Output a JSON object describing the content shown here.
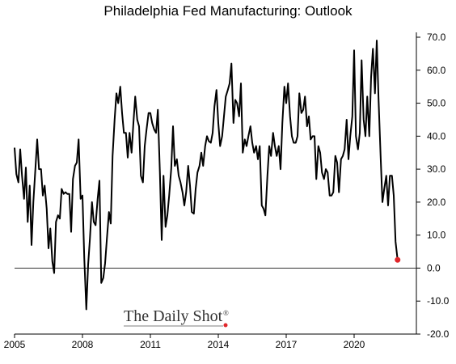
{
  "chart_data": {
    "type": "line",
    "title": "Philadelphia Fed Manufacturing: Outlook",
    "xlabel": "",
    "ylabel": "",
    "xlim": [
      2005.0,
      2022.75
    ],
    "ylim": [
      -20,
      70
    ],
    "y_ticks": [
      -20,
      -10,
      0,
      10,
      20,
      30,
      40,
      50,
      60,
      70
    ],
    "y_tick_labels": [
      "-20.0",
      "-10.0",
      "0.0",
      "10.0",
      "20.0",
      "30.0",
      "40.0",
      "50.0",
      "60.0",
      "70.0"
    ],
    "x_ticks": [
      2005,
      2008,
      2011,
      2014,
      2017,
      2020
    ],
    "x_tick_labels": [
      "2005",
      "2008",
      "2011",
      "2014",
      "2017",
      "2020"
    ],
    "zero_line": true,
    "grid": false,
    "last_point_marker": true,
    "series": [
      {
        "color": "#000000",
        "points": [
          [
            2005.0,
            36.5
          ],
          [
            2005.08,
            28.5
          ],
          [
            2005.17,
            26.0
          ],
          [
            2005.25,
            36.0
          ],
          [
            2005.33,
            28.0
          ],
          [
            2005.42,
            21.0
          ],
          [
            2005.5,
            30.5
          ],
          [
            2005.58,
            14.0
          ],
          [
            2005.67,
            25.0
          ],
          [
            2005.75,
            7.0
          ],
          [
            2005.83,
            20.0
          ],
          [
            2005.92,
            30.0
          ],
          [
            2006.0,
            39.0
          ],
          [
            2006.08,
            30.0
          ],
          [
            2006.17,
            30.0
          ],
          [
            2006.25,
            22.0
          ],
          [
            2006.33,
            25.0
          ],
          [
            2006.42,
            18.0
          ],
          [
            2006.5,
            6.0
          ],
          [
            2006.58,
            12.0
          ],
          [
            2006.67,
            2.0
          ],
          [
            2006.75,
            -1.5
          ],
          [
            2006.83,
            14.0
          ],
          [
            2006.92,
            16.0
          ],
          [
            2007.0,
            15.0
          ],
          [
            2007.08,
            24.0
          ],
          [
            2007.17,
            22.5
          ],
          [
            2007.25,
            23.0
          ],
          [
            2007.33,
            22.5
          ],
          [
            2007.42,
            22.5
          ],
          [
            2007.5,
            11.0
          ],
          [
            2007.58,
            27.0
          ],
          [
            2007.67,
            31.0
          ],
          [
            2007.75,
            32.0
          ],
          [
            2007.83,
            39.0
          ],
          [
            2007.92,
            21.0
          ],
          [
            2008.0,
            22.0
          ],
          [
            2008.08,
            3.0
          ],
          [
            2008.17,
            -12.5
          ],
          [
            2008.25,
            1.0
          ],
          [
            2008.33,
            9.0
          ],
          [
            2008.42,
            20.0
          ],
          [
            2008.5,
            14.0
          ],
          [
            2008.58,
            13.0
          ],
          [
            2008.67,
            21.0
          ],
          [
            2008.75,
            26.5
          ],
          [
            2008.83,
            -4.5
          ],
          [
            2008.92,
            -3.0
          ],
          [
            2009.0,
            1.5
          ],
          [
            2009.08,
            9.0
          ],
          [
            2009.17,
            17.0
          ],
          [
            2009.25,
            13.5
          ],
          [
            2009.33,
            34.0
          ],
          [
            2009.42,
            45.0
          ],
          [
            2009.5,
            53.0
          ],
          [
            2009.58,
            50.0
          ],
          [
            2009.67,
            55.0
          ],
          [
            2009.75,
            47.0
          ],
          [
            2009.83,
            41.0
          ],
          [
            2009.92,
            41.0
          ],
          [
            2010.0,
            33.5
          ],
          [
            2010.08,
            41.0
          ],
          [
            2010.17,
            35.0
          ],
          [
            2010.25,
            44.0
          ],
          [
            2010.33,
            52.0
          ],
          [
            2010.42,
            45.0
          ],
          [
            2010.5,
            43.0
          ],
          [
            2010.58,
            28.0
          ],
          [
            2010.67,
            26.0
          ],
          [
            2010.75,
            37.0
          ],
          [
            2010.83,
            42.0
          ],
          [
            2010.92,
            47.0
          ],
          [
            2011.0,
            47.0
          ],
          [
            2011.08,
            44.0
          ],
          [
            2011.17,
            42.0
          ],
          [
            2011.25,
            41.0
          ],
          [
            2011.33,
            48.0
          ],
          [
            2011.42,
            29.0
          ],
          [
            2011.5,
            8.5
          ],
          [
            2011.58,
            28.0
          ],
          [
            2011.67,
            12.5
          ],
          [
            2011.75,
            16.0
          ],
          [
            2011.83,
            22.0
          ],
          [
            2011.92,
            30.0
          ],
          [
            2012.0,
            43.0
          ],
          [
            2012.08,
            31.0
          ],
          [
            2012.17,
            33.0
          ],
          [
            2012.25,
            28.0
          ],
          [
            2012.33,
            26.0
          ],
          [
            2012.42,
            23.0
          ],
          [
            2012.5,
            19.0
          ],
          [
            2012.58,
            23.0
          ],
          [
            2012.67,
            31.0
          ],
          [
            2012.75,
            25.0
          ],
          [
            2012.83,
            17.0
          ],
          [
            2012.92,
            16.5
          ],
          [
            2013.0,
            24.0
          ],
          [
            2013.08,
            29.0
          ],
          [
            2013.17,
            31.0
          ],
          [
            2013.25,
            35.0
          ],
          [
            2013.33,
            31.0
          ],
          [
            2013.42,
            37.0
          ],
          [
            2013.5,
            40.0
          ],
          [
            2013.58,
            38.5
          ],
          [
            2013.67,
            38.0
          ],
          [
            2013.75,
            41.0
          ],
          [
            2013.83,
            49.0
          ],
          [
            2013.92,
            54.0
          ],
          [
            2014.0,
            44.0
          ],
          [
            2014.08,
            37.0
          ],
          [
            2014.17,
            40.0
          ],
          [
            2014.25,
            46.0
          ],
          [
            2014.33,
            52.0
          ],
          [
            2014.42,
            54.0
          ],
          [
            2014.5,
            56.0
          ],
          [
            2014.58,
            62.0
          ],
          [
            2014.67,
            44.0
          ],
          [
            2014.75,
            51.0
          ],
          [
            2014.83,
            50.0
          ],
          [
            2014.92,
            46.0
          ],
          [
            2015.0,
            56.0
          ],
          [
            2015.08,
            35.0
          ],
          [
            2015.17,
            39.0
          ],
          [
            2015.25,
            37.0
          ],
          [
            2015.33,
            40.0
          ],
          [
            2015.42,
            43.0
          ],
          [
            2015.5,
            38.0
          ],
          [
            2015.58,
            35.0
          ],
          [
            2015.67,
            37.0
          ],
          [
            2015.75,
            33.0
          ],
          [
            2015.83,
            37.0
          ],
          [
            2015.92,
            19.0
          ],
          [
            2016.0,
            18.0
          ],
          [
            2016.08,
            16.0
          ],
          [
            2016.17,
            28.0
          ],
          [
            2016.25,
            37.0
          ],
          [
            2016.33,
            34.0
          ],
          [
            2016.42,
            41.0
          ],
          [
            2016.5,
            37.0
          ],
          [
            2016.58,
            34.0
          ],
          [
            2016.67,
            37.0
          ],
          [
            2016.75,
            30.0
          ],
          [
            2016.83,
            44.0
          ],
          [
            2016.92,
            55.0
          ],
          [
            2017.0,
            50.0
          ],
          [
            2017.08,
            56.0
          ],
          [
            2017.17,
            46.0
          ],
          [
            2017.25,
            40.0
          ],
          [
            2017.33,
            38.0
          ],
          [
            2017.42,
            38.0
          ],
          [
            2017.5,
            40.0
          ],
          [
            2017.58,
            53.0
          ],
          [
            2017.67,
            47.0
          ],
          [
            2017.75,
            48.0
          ],
          [
            2017.83,
            52.0
          ],
          [
            2017.92,
            43.0
          ],
          [
            2018.0,
            46.0
          ],
          [
            2018.08,
            39.0
          ],
          [
            2018.17,
            40.0
          ],
          [
            2018.25,
            40.0
          ],
          [
            2018.33,
            27.0
          ],
          [
            2018.42,
            37.0
          ],
          [
            2018.5,
            35.0
          ],
          [
            2018.58,
            29.0
          ],
          [
            2018.67,
            27.0
          ],
          [
            2018.75,
            30.0
          ],
          [
            2018.83,
            29.0
          ],
          [
            2018.92,
            22.0
          ],
          [
            2019.0,
            22.0
          ],
          [
            2019.08,
            23.0
          ],
          [
            2019.17,
            34.0
          ],
          [
            2019.25,
            32.0
          ],
          [
            2019.33,
            23.0
          ],
          [
            2019.42,
            33.0
          ],
          [
            2019.5,
            34.0
          ],
          [
            2019.58,
            36.0
          ],
          [
            2019.67,
            45.0
          ],
          [
            2019.75,
            33.0
          ],
          [
            2019.83,
            40.0
          ],
          [
            2019.92,
            46.0
          ],
          [
            2020.0,
            66.0
          ],
          [
            2020.08,
            40.0
          ],
          [
            2020.17,
            36.0
          ],
          [
            2020.25,
            41.0
          ],
          [
            2020.33,
            63.0
          ],
          [
            2020.42,
            45.0
          ],
          [
            2020.5,
            40.0
          ],
          [
            2020.58,
            52.0
          ],
          [
            2020.67,
            40.0
          ],
          [
            2020.75,
            58.0
          ],
          [
            2020.83,
            66.5
          ],
          [
            2020.92,
            53.0
          ],
          [
            2021.0,
            69.0
          ],
          [
            2021.08,
            51.0
          ],
          [
            2021.17,
            34.0
          ],
          [
            2021.25,
            20.0
          ],
          [
            2021.33,
            24.0
          ],
          [
            2021.42,
            28.0
          ],
          [
            2021.5,
            19.0
          ],
          [
            2021.58,
            28.0
          ],
          [
            2021.67,
            28.0
          ],
          [
            2021.75,
            22.0
          ],
          [
            2021.83,
            8.0
          ],
          [
            2021.92,
            2.5
          ]
        ]
      }
    ],
    "watermark": "The Daily Shot",
    "watermark_mark": "®"
  }
}
